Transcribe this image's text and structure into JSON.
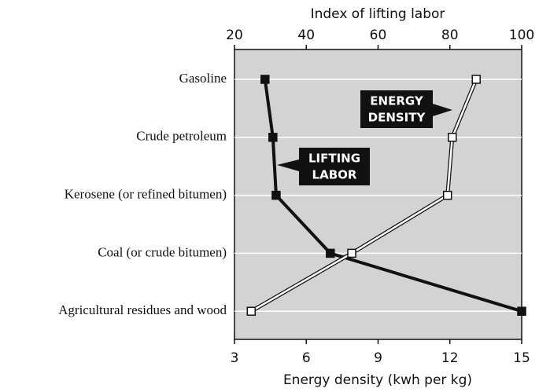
{
  "chart_data": {
    "type": "line",
    "categories": [
      "Gasoline",
      "Crude petroleum",
      "Kerosene (or refined bitumen)",
      "Coal (or crude bitumen)",
      "Agricultural residues and wood"
    ],
    "xlabel": "Energy density (kwh per kg)",
    "x2label": "Index of lifting labor",
    "xlim": [
      3,
      15
    ],
    "xticks": [
      3,
      6,
      9,
      12,
      15
    ],
    "x2lim": [
      20,
      100
    ],
    "x2ticks": [
      20,
      40,
      60,
      80,
      100
    ],
    "grid": true,
    "series": [
      {
        "name": "LIFTING LABOR",
        "color": "#111111",
        "axis": "x2",
        "values": [
          28.5,
          30.7,
          31.6,
          46.7,
          100
        ]
      },
      {
        "name": "ENERGY DENSITY",
        "color": "#ffffff",
        "axis": "x",
        "values": [
          13.1,
          12.1,
          11.9,
          7.9,
          3.7
        ]
      }
    ],
    "annotations": [
      {
        "lines": [
          "ENERGY",
          "DENSITY"
        ]
      },
      {
        "lines": [
          "LIFTING",
          "LABOR"
        ]
      }
    ]
  }
}
